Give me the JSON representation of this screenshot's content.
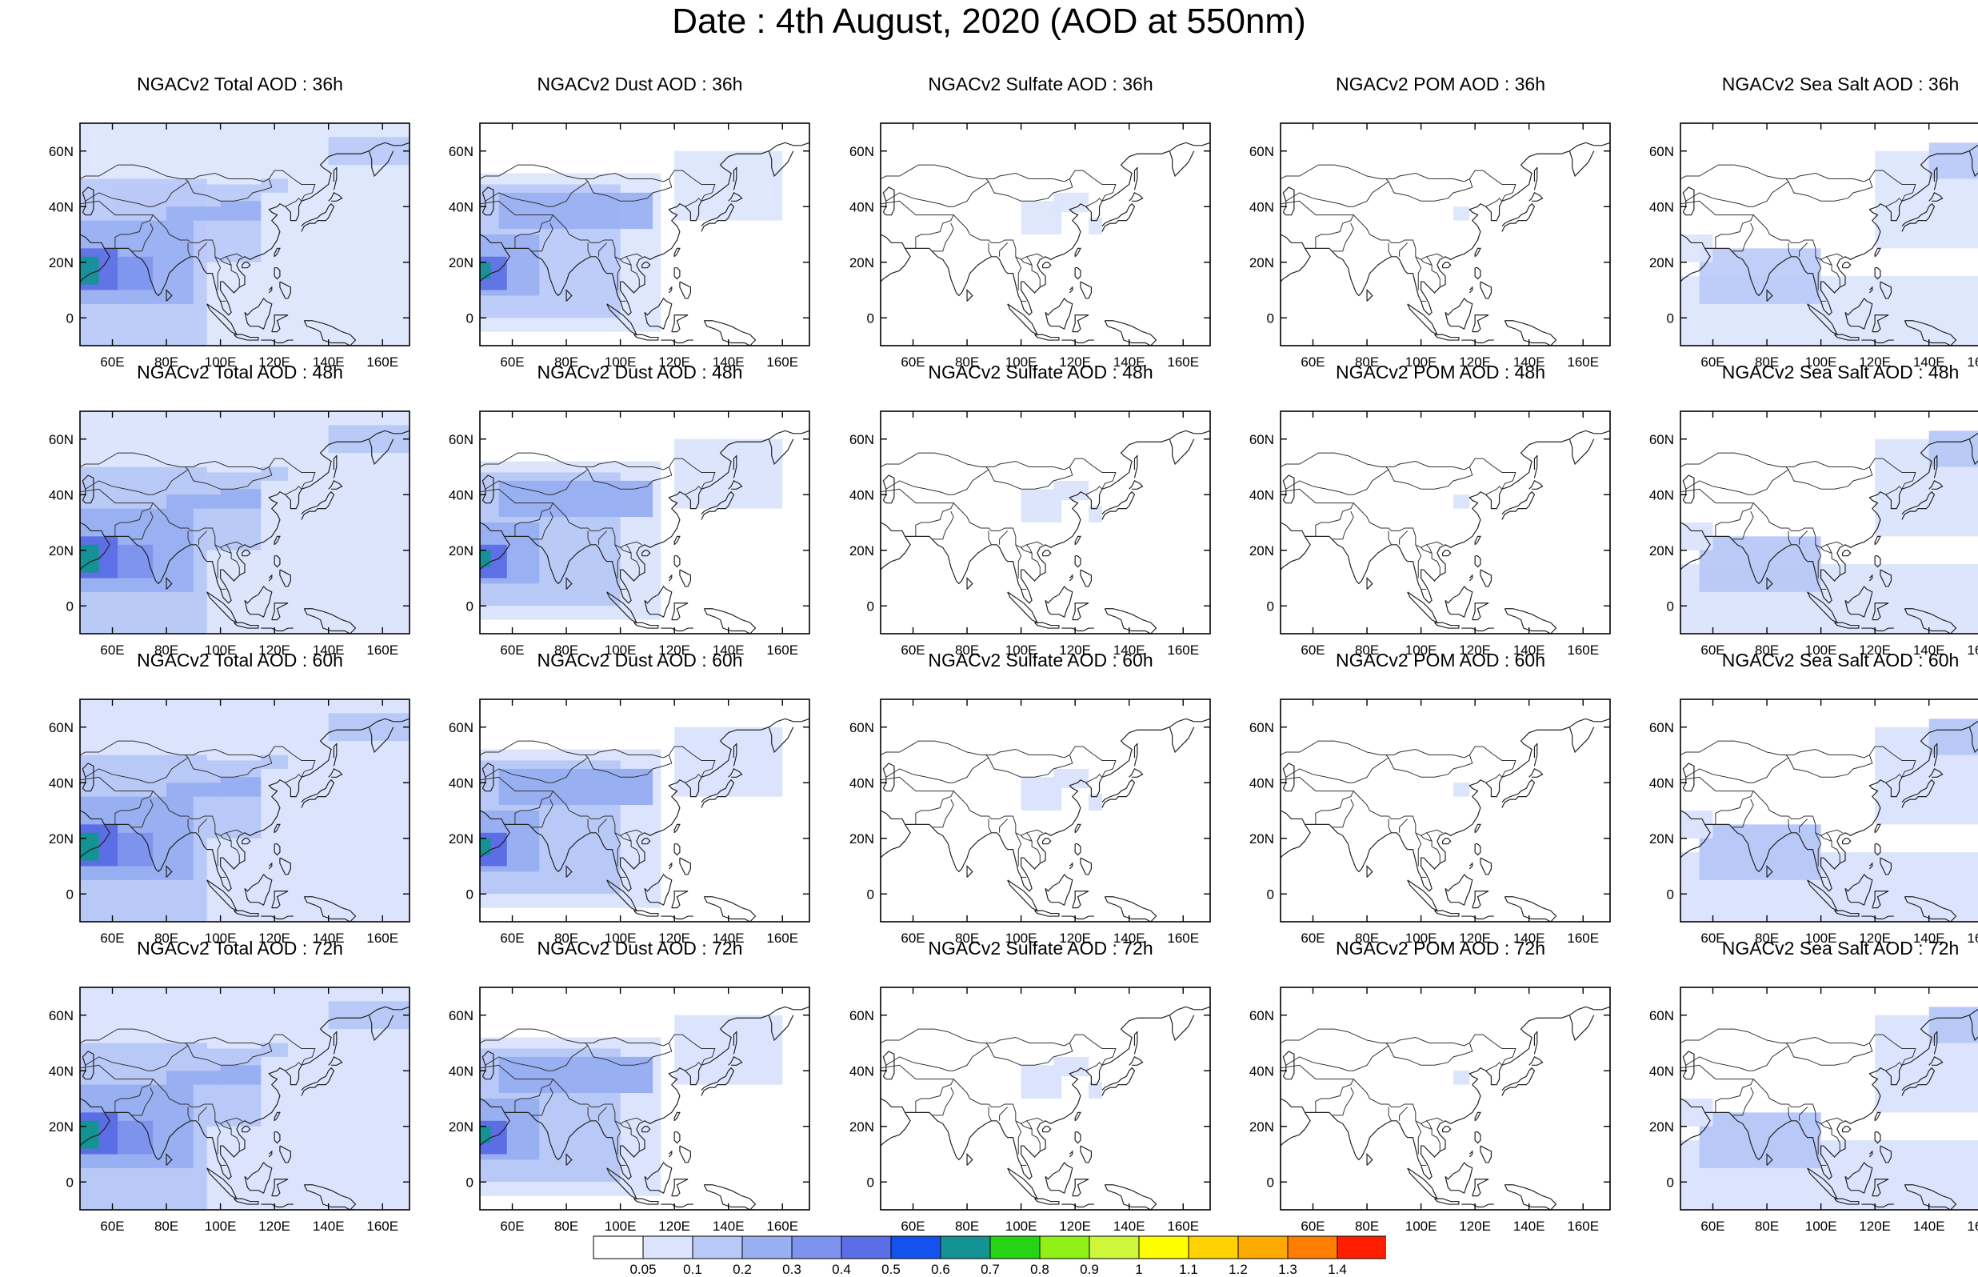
{
  "title": "Date : 4th August, 2020 (AOD at 550nm)",
  "axes": {
    "lon_ticks": [
      "60E",
      "80E",
      "100E",
      "120E",
      "140E",
      "160E"
    ],
    "lat_ticks": [
      "60N",
      "40N",
      "20N",
      "0"
    ],
    "lon_values": [
      60,
      80,
      100,
      120,
      140,
      160
    ],
    "lat_values": [
      60,
      40,
      20,
      0
    ],
    "lon_range": [
      48,
      170
    ],
    "lat_range": [
      -10,
      70
    ]
  },
  "panels": [
    {
      "title": "NGACv2 Total AOD : 36h",
      "species": "total",
      "forecast_hour": 36
    },
    {
      "title": "NGACv2 Dust AOD : 36h",
      "species": "dust",
      "forecast_hour": 36
    },
    {
      "title": "NGACv2 Sulfate AOD : 36h",
      "species": "sulfate",
      "forecast_hour": 36
    },
    {
      "title": "NGACv2 POM AOD : 36h",
      "species": "pom",
      "forecast_hour": 36
    },
    {
      "title": "NGACv2 Sea Salt AOD : 36h",
      "species": "seasalt",
      "forecast_hour": 36
    },
    {
      "title": "NGACv2 Total AOD : 48h",
      "species": "total",
      "forecast_hour": 48
    },
    {
      "title": "NGACv2 Dust AOD : 48h",
      "species": "dust",
      "forecast_hour": 48
    },
    {
      "title": "NGACv2 Sulfate AOD : 48h",
      "species": "sulfate",
      "forecast_hour": 48
    },
    {
      "title": "NGACv2 POM AOD : 48h",
      "species": "pom",
      "forecast_hour": 48
    },
    {
      "title": "NGACv2 Sea Salt AOD : 48h",
      "species": "seasalt",
      "forecast_hour": 48
    },
    {
      "title": "NGACv2 Total AOD : 60h",
      "species": "total",
      "forecast_hour": 60
    },
    {
      "title": "NGACv2 Dust AOD : 60h",
      "species": "dust",
      "forecast_hour": 60
    },
    {
      "title": "NGACv2 Sulfate AOD : 60h",
      "species": "sulfate",
      "forecast_hour": 60
    },
    {
      "title": "NGACv2 POM AOD : 60h",
      "species": "pom",
      "forecast_hour": 60
    },
    {
      "title": "NGACv2 Sea Salt AOD : 60h",
      "species": "seasalt",
      "forecast_hour": 60
    },
    {
      "title": "NGACv2 Total AOD : 72h",
      "species": "total",
      "forecast_hour": 72
    },
    {
      "title": "NGACv2 Dust AOD : 72h",
      "species": "dust",
      "forecast_hour": 72
    },
    {
      "title": "NGACv2 Sulfate AOD : 72h",
      "species": "sulfate",
      "forecast_hour": 72
    },
    {
      "title": "NGACv2 POM AOD : 72h",
      "species": "pom",
      "forecast_hour": 72
    },
    {
      "title": "NGACv2 Sea Salt  AOD : 72h",
      "species": "seasalt",
      "forecast_hour": 72
    }
  ],
  "colorbar": {
    "labels": [
      "0.05",
      "0.1",
      "0.2",
      "0.3",
      "0.4",
      "0.5",
      "0.6",
      "0.7",
      "0.8",
      "0.9",
      "1",
      "1.1",
      "1.2",
      "1.3",
      "1.4"
    ],
    "colors": [
      "#ffffff",
      "#dbe4fc",
      "#b9c9f7",
      "#98aff2",
      "#7d93ee",
      "#5c6ee6",
      "#1452f0",
      "#139393",
      "#27d414",
      "#8ff016",
      "#cff63a",
      "#ffff00",
      "#ffd200",
      "#ffaa00",
      "#ff7d00",
      "#ff1e00"
    ]
  }
}
